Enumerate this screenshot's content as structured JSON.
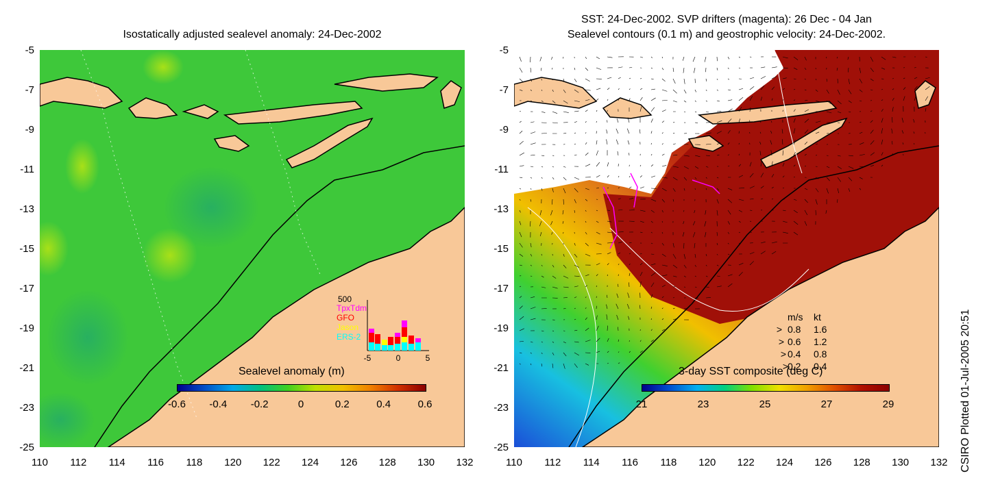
{
  "left_panel": {
    "title": "Isostatically adjusted sealevel anomaly: 24-Dec-2002",
    "colorbar": {
      "label": "Sealevel anomaly (m)",
      "ticks": [
        "-0.6",
        "-0.4",
        "-0.2",
        "0",
        "0.2",
        "0.4",
        "0.6"
      ],
      "colors": [
        "#00008b",
        "#0050c8",
        "#00a8e8",
        "#00c080",
        "#40d020",
        "#c0e000",
        "#f0c000",
        "#f08000",
        "#d03000",
        "#8b0000"
      ]
    },
    "inset": {
      "max_label": "500",
      "legend": [
        {
          "name": "TpxTdm",
          "color": "#ff00ff"
        },
        {
          "name": "GFO",
          "color": "#ff0000"
        },
        {
          "name": "Jason",
          "color": "#ffff00"
        },
        {
          "name": "ERS-2",
          "color": "#00ffff"
        }
      ],
      "x_ticks": [
        "-5",
        "0",
        "5"
      ]
    }
  },
  "right_panel": {
    "title_line1": "SST: 24-Dec-2002. SVP drifters (magenta): 26 Dec - 04 Jan",
    "title_line2": "Sealevel contours (0.1 m) and geostrophic velocity: 24-Dec-2002.",
    "colorbar": {
      "label": "3-day SST composite (deg C)",
      "ticks": [
        "21",
        "23",
        "25",
        "27",
        "29"
      ],
      "colors": [
        "#00008b",
        "#0050d0",
        "#00b0f0",
        "#00d080",
        "#80e000",
        "#f0e000",
        "#f0a000",
        "#e05000",
        "#b01000",
        "#8b0000"
      ]
    },
    "velocity_legend": {
      "header_ms": "m/s",
      "header_kt": "kt",
      "rows": [
        {
          "ms": "0.8",
          "kt": "1.6"
        },
        {
          "ms": "0.6",
          "kt": "1.2"
        },
        {
          "ms": "0.4",
          "kt": "0.8"
        },
        {
          "ms": "0.2",
          "kt": "0.4"
        }
      ]
    }
  },
  "axes": {
    "lat_ticks": [
      "-5",
      "-7",
      "-9",
      "-11",
      "-13",
      "-15",
      "-17",
      "-19",
      "-21",
      "-23",
      "-25"
    ],
    "lon_ticks": [
      "110",
      "112",
      "114",
      "116",
      "118",
      "120",
      "122",
      "124",
      "126",
      "128",
      "130",
      "132"
    ]
  },
  "colors": {
    "land": "#f8c898",
    "sea_green": "#3ec83a",
    "sst_red": "#a01008",
    "sst_orange": "#e07818",
    "drifter": "#ff00ff"
  },
  "credit": "CSIRO Plotted 01-Jul-2005 20:51"
}
